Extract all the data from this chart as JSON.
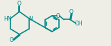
{
  "bg_color": "#eeeee6",
  "line_color": "#008888",
  "text_color": "#008888",
  "bond_lw": 1.2,
  "font_size": 5.5,
  "figsize": [
    1.6,
    0.67
  ],
  "dpi": 100,
  "xlim": [
    0,
    16
  ],
  "ylim": [
    0,
    6.7
  ]
}
